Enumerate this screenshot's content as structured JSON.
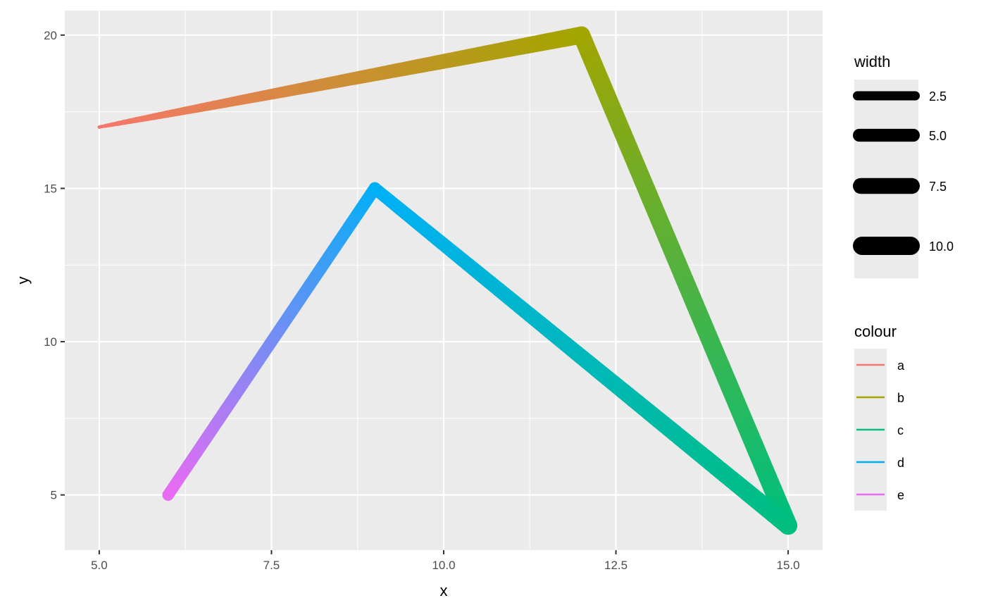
{
  "chart_data": {
    "type": "line",
    "xlabel": "x",
    "ylabel": "y",
    "xlim": [
      4.5,
      15.5
    ],
    "ylim": [
      3.2,
      20.8
    ],
    "x_ticks": [
      "5.0",
      "7.5",
      "10.0",
      "12.5",
      "15.0"
    ],
    "x_tick_values": [
      5,
      7.5,
      10,
      12.5,
      15
    ],
    "y_ticks": [
      "5",
      "10",
      "15",
      "20"
    ],
    "y_tick_values": [
      5,
      10,
      15,
      20
    ],
    "grid": true,
    "points": [
      {
        "x": 5,
        "y": 17,
        "colour": "a",
        "width": 0.3
      },
      {
        "x": 12,
        "y": 20,
        "colour": "b",
        "width": 9
      },
      {
        "x": 15,
        "y": 4,
        "colour": "c",
        "width": 10
      },
      {
        "x": 9,
        "y": 15,
        "colour": "d",
        "width": 4.5
      },
      {
        "x": 6,
        "y": 5,
        "colour": "e",
        "width": 4
      }
    ],
    "legend_width": {
      "title": "width",
      "labels": [
        "2.5",
        "5.0",
        "7.5",
        "10.0"
      ],
      "values": [
        2.5,
        5,
        7.5,
        10
      ]
    },
    "legend_colour": {
      "title": "colour",
      "labels": [
        "a",
        "b",
        "c",
        "d",
        "e"
      ],
      "colors": [
        "#F8766D",
        "#A3A500",
        "#00BF7D",
        "#00B0F6",
        "#E76BF3"
      ]
    },
    "legend_placement": "right"
  }
}
